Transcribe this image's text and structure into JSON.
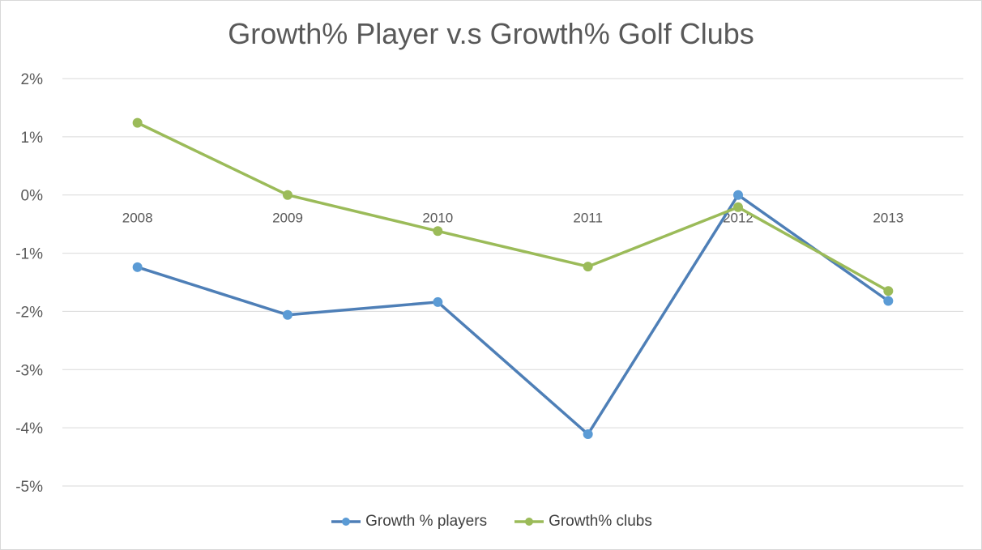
{
  "chart_data": {
    "type": "line",
    "title": "Growth% Player v.s Growth% Golf Clubs",
    "categories": [
      "2008",
      "2009",
      "2010",
      "2011",
      "2012",
      "2013"
    ],
    "ylim": [
      -0.05,
      0.02
    ],
    "y_ticks": [
      0.02,
      0.01,
      0,
      -0.01,
      -0.02,
      -0.03,
      -0.04,
      -0.05
    ],
    "y_tick_labels": [
      "2%",
      "1%",
      "0%",
      "-1%",
      "-2%",
      "-3%",
      "-4%",
      "-5%"
    ],
    "grid": true,
    "legend_position": "bottom",
    "series": [
      {
        "name": "Growth % players",
        "color": "#4e7fb7",
        "marker_color": "#5b9bd5",
        "values": [
          -0.0124,
          -0.0206,
          -0.0184,
          -0.0411,
          0.0,
          -0.0182
        ]
      },
      {
        "name": "Growth% clubs",
        "color": "#9bbb59",
        "marker_color": "#9bbb59",
        "values": [
          0.0124,
          0.0,
          -0.0062,
          -0.0123,
          -0.0021,
          -0.0165
        ]
      }
    ]
  }
}
